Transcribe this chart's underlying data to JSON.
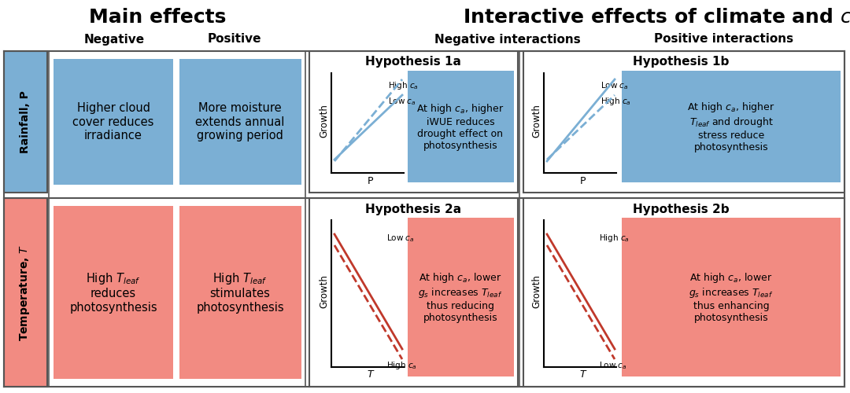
{
  "title_main": "Main effects",
  "title_interactive": "Interactive effects of climate and ",
  "col_neg": "Negative",
  "col_pos": "Positive",
  "col_neg_int": "Negative interactions",
  "col_pos_int": "Positive interactions",
  "row1_label": "Rainfall, P",
  "row2_label": "Temperature, T",
  "blue_color": "#7BAFD4",
  "red_color": "#F28B82",
  "white_bg": "#FFFFFF",
  "hyp1a_title": "Hypothesis 1a",
  "hyp1b_title": "Hypothesis 1b",
  "hyp2a_title": "Hypothesis 2a",
  "hyp2b_title": "Hypothesis 2b",
  "hyp1a_text": "At high $c_a$, higher\niWUE reduces\ndrought effect on\nphotosynthesis",
  "hyp1b_text": "At high $c_a$, higher\n$T_{leaf}$ and drought\nstress reduce\nphotosynthesis",
  "hyp2a_text": "At high $c_a$, lower\n$g_s$ increases $T_{leaf}$\nthus reducing\nphotosynthesis",
  "hyp2b_text": "At high $c_a$, lower\n$g_s$ increases $T_{leaf}$\nthus enhancing\nphotosynthesis",
  "box_neg_rain": "Higher cloud\ncover reduces\nirradiance",
  "box_pos_rain": "More moisture\nextends annual\ngrowing period",
  "box_neg_temp": "High $T_{leaf}$\nreduces\nphotosynthesis",
  "box_pos_temp": "High $T_{leaf}$\nstimulates\nphotosynthesis"
}
